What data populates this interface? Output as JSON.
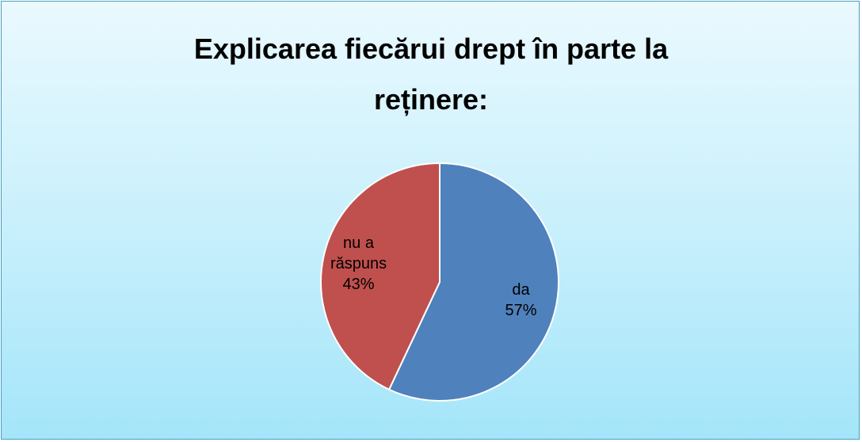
{
  "chart_data": {
    "type": "pie",
    "title": "Explicarea fiecărui drept în parte la reținere:",
    "categories": [
      "da",
      "nu a răspuns"
    ],
    "values": [
      57,
      43
    ],
    "value_labels": [
      "57%",
      "43%"
    ],
    "colors": [
      "#4f81bd",
      "#c0504d"
    ]
  }
}
